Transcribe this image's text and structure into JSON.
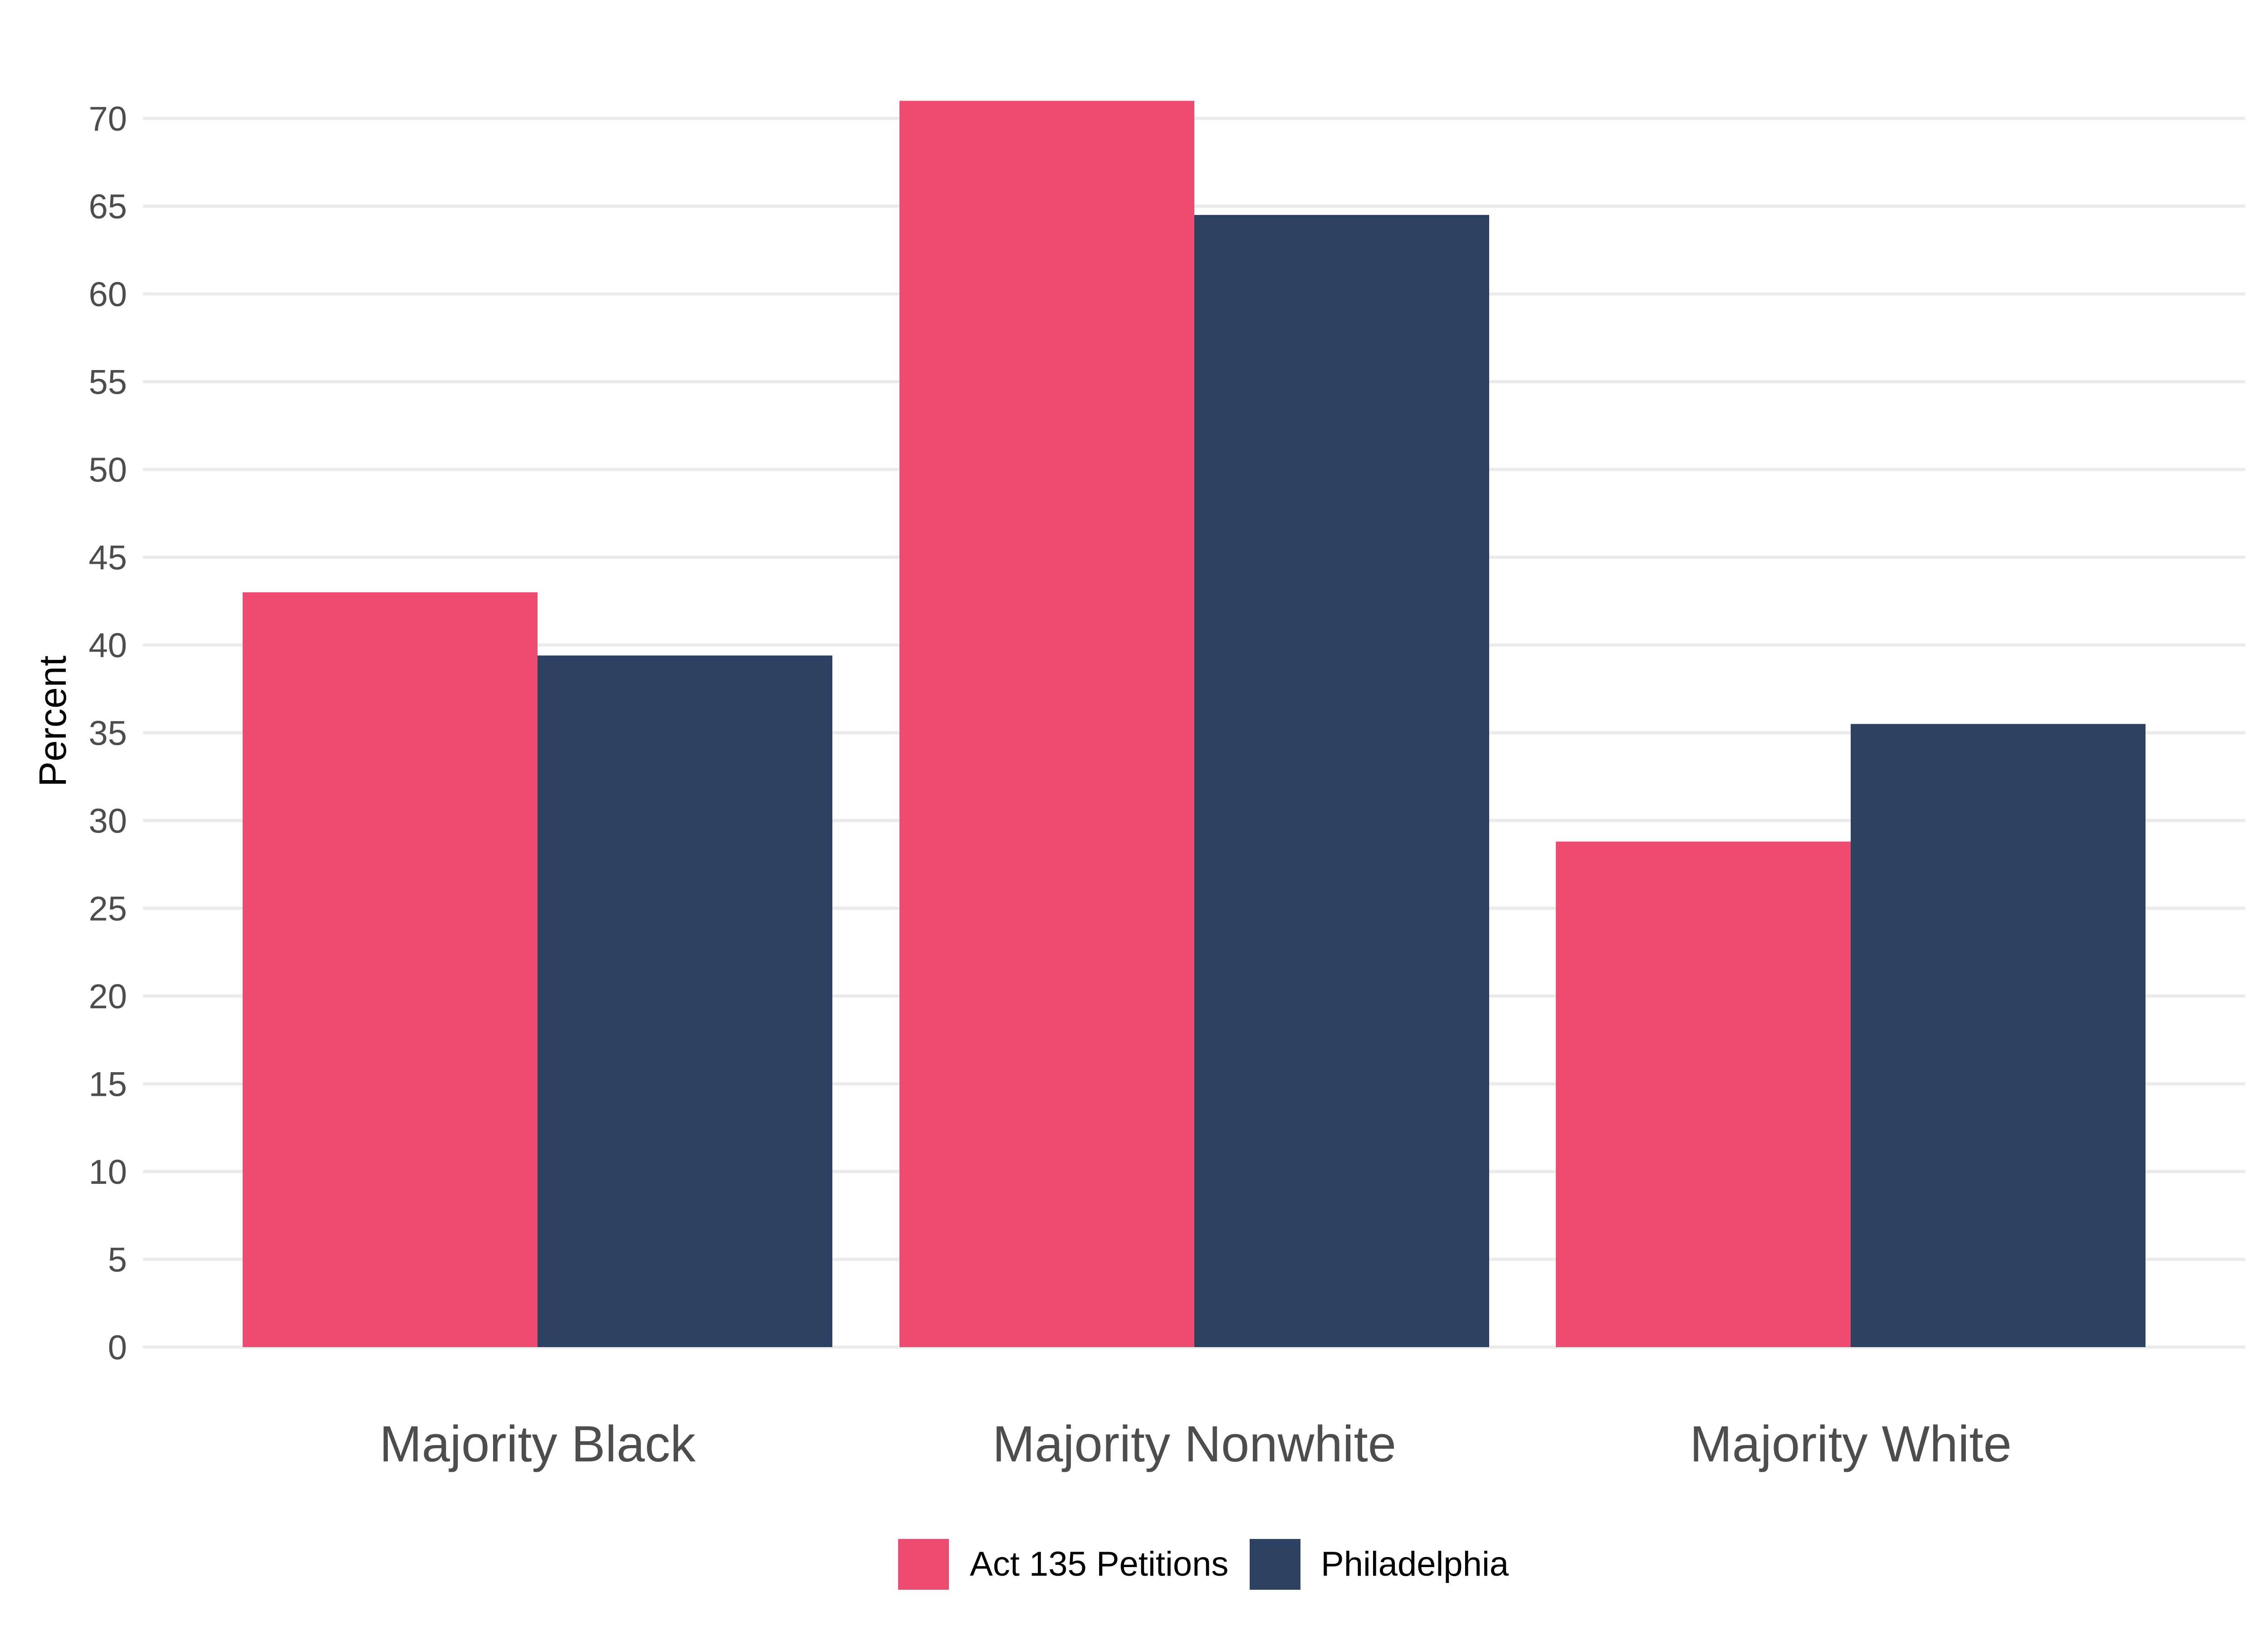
{
  "chart_data": {
    "type": "bar",
    "title": "",
    "xlabel": "",
    "ylabel": "Percent",
    "categories": [
      "Majority Black",
      "Majority Nonwhite",
      "Majority White"
    ],
    "series": [
      {
        "name": "Act 135 Petitions",
        "color": "#ef4a6f",
        "values": [
          43.0,
          71.0,
          28.8
        ]
      },
      {
        "name": "Philadelphia",
        "color": "#2d4262",
        "values": [
          39.4,
          64.5,
          35.5
        ]
      }
    ],
    "ylim": [
      0,
      71
    ],
    "yticks": [
      0,
      5,
      10,
      15,
      20,
      25,
      30,
      35,
      40,
      45,
      50,
      55,
      60,
      65,
      70
    ],
    "grid": "horizontal",
    "legend_position": "bottom"
  }
}
